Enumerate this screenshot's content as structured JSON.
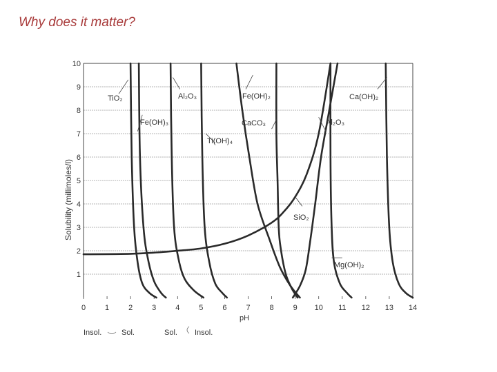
{
  "slide": {
    "title": "Why does it matter?"
  },
  "chart_data": {
    "type": "line",
    "ylabel": "Solubility (millimoles/l)",
    "xlabel": "pH",
    "xlim": [
      0,
      14
    ],
    "ylim": [
      0,
      10
    ],
    "x_ticks": [
      "0",
      "1",
      "2",
      "3",
      "4",
      "5",
      "6",
      "7",
      "8",
      "9",
      "10",
      "11",
      "12",
      "13",
      "14"
    ],
    "y_ticks": [
      "1",
      "2",
      "3",
      "4",
      "5",
      "6",
      "7",
      "8",
      "9",
      "10"
    ],
    "grid": "horizontal",
    "series": [
      {
        "name": "TiO2",
        "points": [
          [
            2.0,
            10
          ],
          [
            2.05,
            6
          ],
          [
            2.15,
            3
          ],
          [
            2.3,
            1.5
          ],
          [
            2.5,
            0.6
          ],
          [
            2.8,
            0.2
          ],
          [
            3.1,
            0
          ]
        ]
      },
      {
        "name": "Fe(OH)3",
        "points": [
          [
            2.35,
            10
          ],
          [
            2.4,
            6
          ],
          [
            2.55,
            3
          ],
          [
            2.75,
            1.6
          ],
          [
            3.0,
            0.7
          ],
          [
            3.3,
            0.2
          ],
          [
            3.5,
            0
          ]
        ]
      },
      {
        "name": "Al2O3",
        "points": [
          [
            3.7,
            10
          ],
          [
            3.75,
            6
          ],
          [
            3.85,
            3
          ],
          [
            4.05,
            1.6
          ],
          [
            4.3,
            0.8
          ],
          [
            4.7,
            0.3
          ],
          [
            5.1,
            0
          ]
        ]
      },
      {
        "name": "Ti(OH)4",
        "points": [
          [
            5.0,
            10
          ],
          [
            5.05,
            6
          ],
          [
            5.15,
            3
          ],
          [
            5.35,
            1.5
          ],
          [
            5.6,
            0.6
          ],
          [
            5.9,
            0.2
          ],
          [
            6.1,
            0
          ]
        ]
      },
      {
        "name": "Fe(OH)2",
        "points": [
          [
            6.5,
            10
          ],
          [
            6.75,
            8
          ],
          [
            7.05,
            6
          ],
          [
            7.4,
            4
          ],
          [
            7.9,
            2.5
          ],
          [
            8.35,
            1.3
          ],
          [
            8.8,
            0.5
          ],
          [
            9.2,
            0
          ]
        ]
      },
      {
        "name": "CaCO3",
        "points": [
          [
            8.2,
            10
          ],
          [
            8.2,
            7
          ],
          [
            8.25,
            5
          ],
          [
            8.3,
            3
          ],
          [
            8.4,
            2
          ],
          [
            8.6,
            1
          ],
          [
            8.85,
            0.4
          ],
          [
            9.1,
            0
          ]
        ]
      },
      {
        "name": "Al2O3",
        "points": [
          [
            10.8,
            10
          ],
          [
            10.45,
            8
          ],
          [
            10.1,
            6
          ],
          [
            9.85,
            4
          ],
          [
            9.65,
            2.5
          ],
          [
            9.45,
            1.2
          ],
          [
            9.2,
            0.5
          ],
          [
            8.9,
            0
          ]
        ]
      },
      {
        "name": "SiO2",
        "points": [
          [
            0.0,
            1.85
          ],
          [
            2.0,
            1.87
          ],
          [
            3.0,
            1.92
          ],
          [
            4.0,
            2.0
          ],
          [
            5.0,
            2.1
          ],
          [
            6.0,
            2.3
          ],
          [
            7.0,
            2.65
          ],
          [
            8.0,
            3.2
          ],
          [
            8.5,
            3.65
          ],
          [
            9.0,
            4.3
          ],
          [
            9.5,
            5.3
          ],
          [
            10.0,
            7.0
          ],
          [
            10.5,
            10
          ]
        ]
      },
      {
        "name": "Mg(OH)2",
        "points": [
          [
            10.5,
            10
          ],
          [
            10.5,
            6
          ],
          [
            10.55,
            3
          ],
          [
            10.65,
            1.5
          ],
          [
            10.9,
            0.6
          ],
          [
            11.2,
            0.2
          ],
          [
            11.4,
            0
          ]
        ]
      },
      {
        "name": "Ca(OH)2",
        "points": [
          [
            12.85,
            10
          ],
          [
            12.9,
            6
          ],
          [
            13.0,
            3
          ],
          [
            13.15,
            1.5
          ],
          [
            13.4,
            0.6
          ],
          [
            13.7,
            0.2
          ],
          [
            14.0,
            0
          ]
        ]
      }
    ],
    "annotations": [
      {
        "id": "tio2",
        "text": "TiO2",
        "lead": [
          [
            1.9,
            9.3
          ],
          [
            1.5,
            8.7
          ]
        ]
      },
      {
        "id": "al2o3-a",
        "text": "Al2O3",
        "lead": [
          [
            3.8,
            9.4
          ],
          [
            4.1,
            8.9
          ]
        ]
      },
      {
        "id": "feoh3-top",
        "text": "Fe(OH)2",
        "lead": [
          [
            7.2,
            9.5
          ],
          [
            6.9,
            8.9
          ]
        ]
      },
      {
        "id": "caoh2",
        "text": "Ca(OH)2",
        "lead": [
          [
            12.9,
            9.4
          ],
          [
            12.5,
            8.9
          ]
        ]
      },
      {
        "id": "feoh3",
        "text": "Fe(OH)3",
        "lead": [
          [
            2.5,
            7.8
          ],
          [
            2.3,
            7.1
          ]
        ]
      },
      {
        "id": "caco3",
        "text": "CaCO3",
        "lead": [
          [
            8.2,
            7.6
          ],
          [
            8.0,
            7.2
          ]
        ]
      },
      {
        "id": "al2o3-b",
        "text": "Al2O3",
        "lead": [
          [
            10.0,
            7.7
          ],
          [
            10.3,
            7.1
          ]
        ]
      },
      {
        "id": "tioh4",
        "text": "Ti(OH)4",
        "lead": [
          [
            5.2,
            7.0
          ],
          [
            5.6,
            6.6
          ]
        ]
      },
      {
        "id": "sio2",
        "text": "SiO2",
        "lead": [
          [
            9.0,
            4.3
          ],
          [
            9.3,
            3.9
          ]
        ]
      },
      {
        "id": "mgoh2",
        "text": "Mg(OH)2",
        "lead": [
          [
            10.55,
            1.7
          ],
          [
            11.0,
            1.7
          ]
        ]
      }
    ],
    "labels": {
      "tio2": "TiO₂",
      "al2o3_a": "Al₂O₃",
      "feoh2": "Fe(OH)₂",
      "caoh2": "Ca(OH)₂",
      "feoh3": "Fe(OH)₃",
      "caco3": "CaCO₃",
      "al2o3_b": "Al₂O₃",
      "tioh4": "Ti(OH)₄",
      "sio2": "SiO₂",
      "mgoh2": "Mg(OH)₂"
    },
    "legend_notes": [
      "Insol.",
      "Sol.",
      "Sol.",
      "Insol."
    ]
  }
}
